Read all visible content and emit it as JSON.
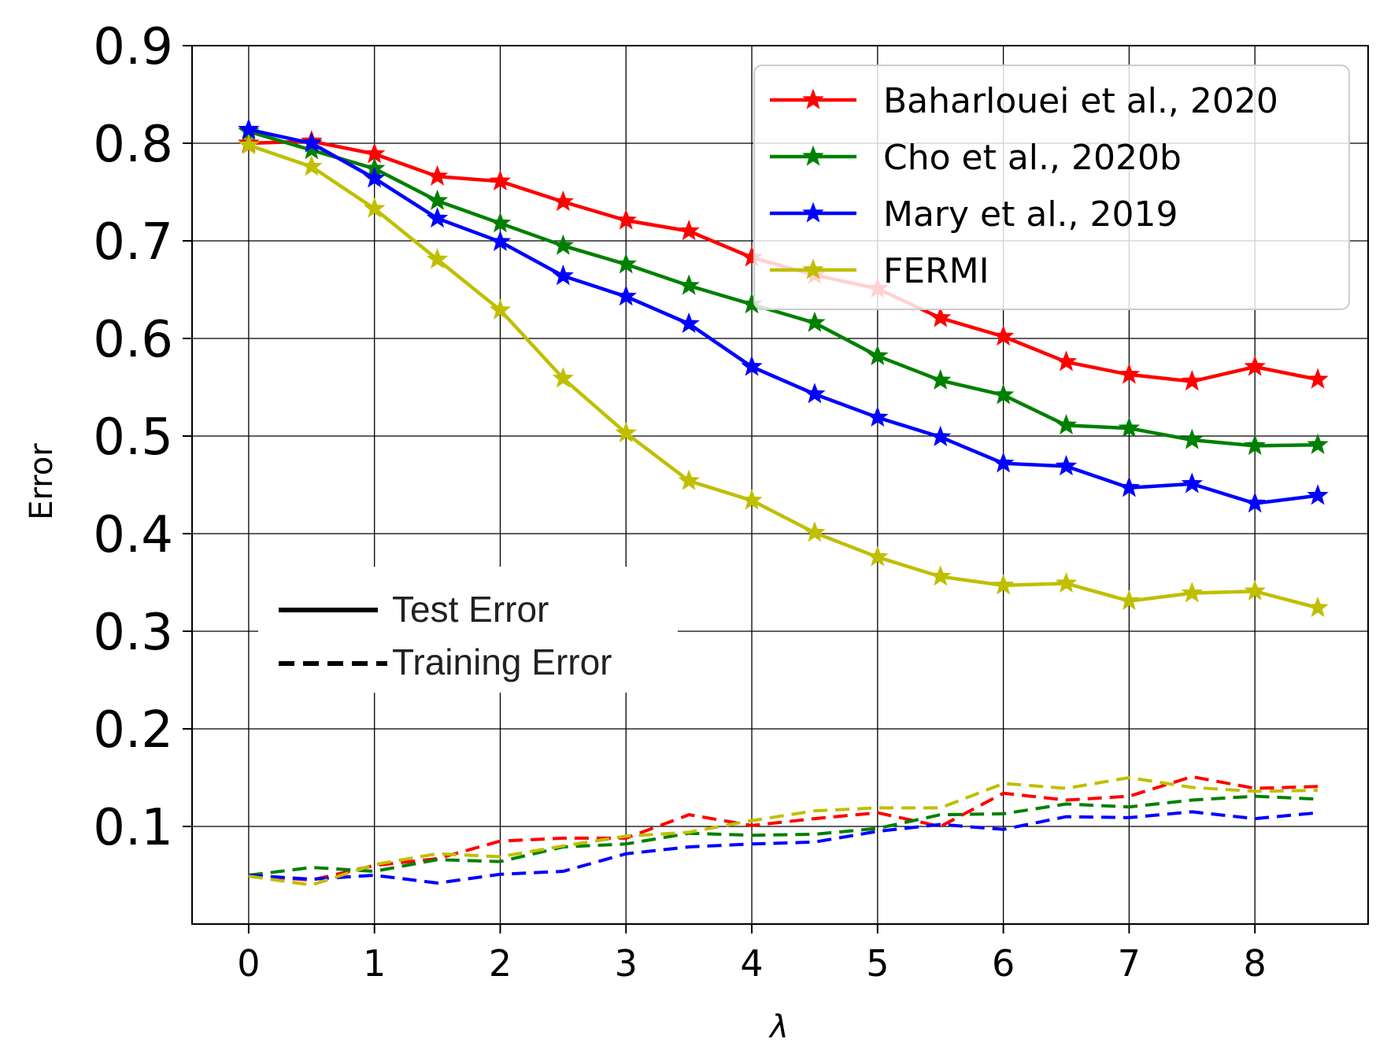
{
  "chart_data": {
    "type": "line",
    "xlabel": "λ",
    "ylabel": "Error",
    "xlim": [
      -0.45,
      8.9
    ],
    "ylim": [
      0.0,
      0.9
    ],
    "xticks": [
      "0",
      "1",
      "2",
      "3",
      "4",
      "5",
      "6",
      "7",
      "8"
    ],
    "yticks": [
      "0.1",
      "0.2",
      "0.3",
      "0.4",
      "0.5",
      "0.6",
      "0.7",
      "0.8",
      "0.9"
    ],
    "grid": true,
    "x": [
      0,
      0.5,
      1,
      1.5,
      2,
      2.5,
      3,
      3.5,
      4,
      4.5,
      5,
      5.5,
      6,
      6.5,
      7,
      7.5,
      8,
      8.5
    ],
    "series": [
      {
        "name": "Baharlouei et al., 2020",
        "color": "#ff0000",
        "test": [
          0.8,
          0.802,
          0.789,
          0.766,
          0.761,
          0.74,
          0.721,
          0.71,
          0.683,
          0.665,
          0.651,
          0.621,
          0.602,
          0.576,
          0.563,
          0.556,
          0.571,
          0.558
        ],
        "train": [
          0.05,
          0.045,
          0.06,
          0.067,
          0.085,
          0.088,
          0.088,
          0.112,
          0.101,
          0.108,
          0.114,
          0.1,
          0.134,
          0.127,
          0.131,
          0.151,
          0.139,
          0.141
        ]
      },
      {
        "name": "Cho et al., 2020b",
        "color": "#008000",
        "test": [
          0.812,
          0.793,
          0.774,
          0.741,
          0.718,
          0.695,
          0.676,
          0.654,
          0.635,
          0.616,
          0.582,
          0.557,
          0.542,
          0.511,
          0.508,
          0.496,
          0.49,
          0.491
        ],
        "train": [
          0.05,
          0.058,
          0.054,
          0.066,
          0.064,
          0.079,
          0.082,
          0.093,
          0.091,
          0.092,
          0.098,
          0.112,
          0.113,
          0.123,
          0.12,
          0.127,
          0.131,
          0.128
        ]
      },
      {
        "name": "Mary et al., 2019",
        "color": "#0000ff",
        "test": [
          0.814,
          0.8,
          0.764,
          0.723,
          0.699,
          0.664,
          0.643,
          0.615,
          0.571,
          0.543,
          0.519,
          0.499,
          0.472,
          0.469,
          0.447,
          0.451,
          0.431,
          0.439
        ],
        "train": [
          0.05,
          0.046,
          0.05,
          0.042,
          0.051,
          0.054,
          0.072,
          0.079,
          0.082,
          0.084,
          0.095,
          0.102,
          0.097,
          0.11,
          0.109,
          0.115,
          0.108,
          0.114
        ]
      },
      {
        "name": "FERMI",
        "color": "#bfbf00",
        "test": [
          0.798,
          0.776,
          0.733,
          0.681,
          0.629,
          0.559,
          0.503,
          0.454,
          0.434,
          0.401,
          0.376,
          0.356,
          0.347,
          0.349,
          0.331,
          0.339,
          0.341,
          0.324
        ],
        "train": [
          0.049,
          0.04,
          0.061,
          0.072,
          0.069,
          0.08,
          0.09,
          0.094,
          0.106,
          0.116,
          0.119,
          0.119,
          0.144,
          0.139,
          0.15,
          0.14,
          0.136,
          0.137
        ]
      }
    ],
    "legend": {
      "placement": "top-right",
      "entries": [
        "Baharlouei et al., 2020",
        "Cho et al., 2020b",
        "Mary et al., 2019",
        "FERMI"
      ]
    },
    "style_legend": {
      "placement": "lower-left",
      "entries": [
        {
          "label": "Test Error",
          "style": "solid"
        },
        {
          "label": "Training Error",
          "style": "dashed"
        }
      ]
    }
  }
}
